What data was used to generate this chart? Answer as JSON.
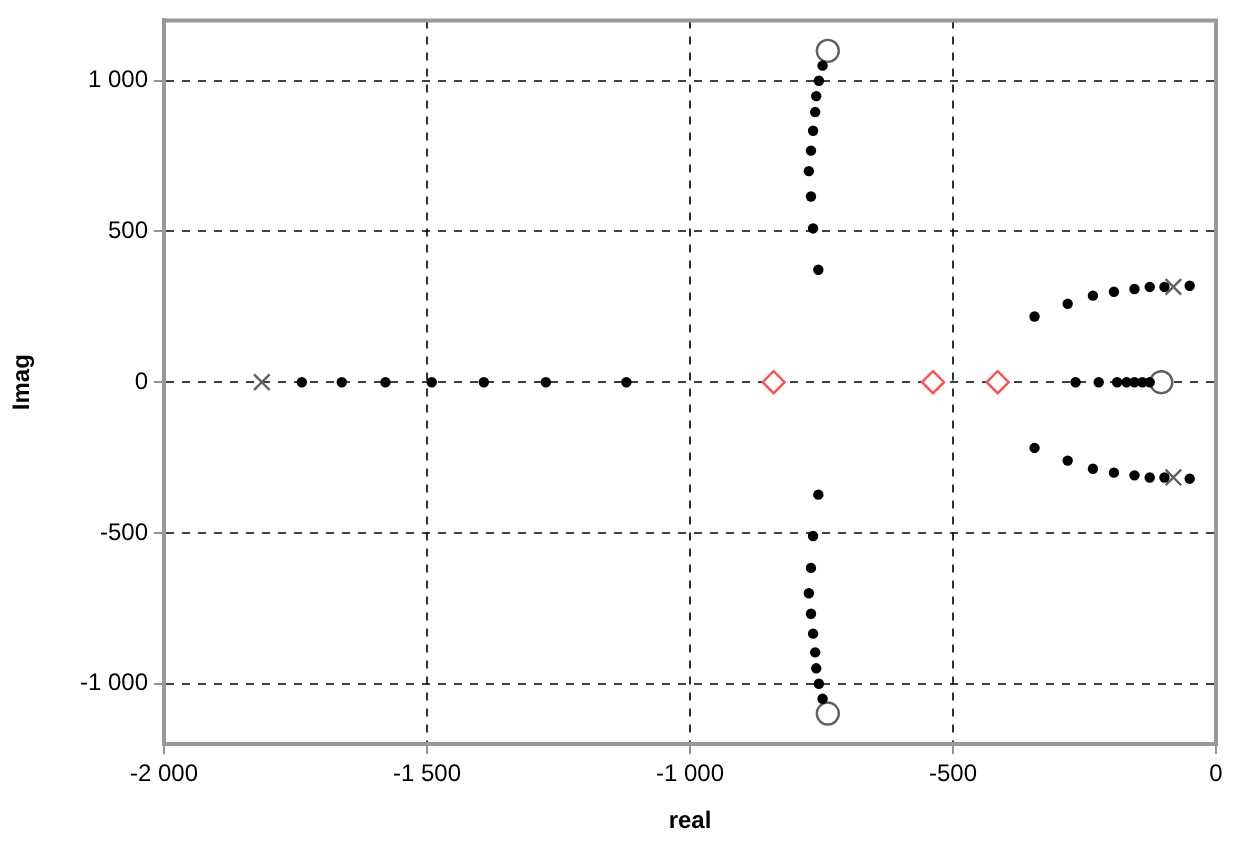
{
  "chart_data": {
    "type": "scatter",
    "xlabel": "real",
    "ylabel": "Imag",
    "xlim": [
      -2000,
      0
    ],
    "ylim": [
      -1200,
      1200
    ],
    "xticks": [
      {
        "value": -2000,
        "label": "-2 000"
      },
      {
        "value": -1500,
        "label": "-1 500"
      },
      {
        "value": -1000,
        "label": "-1 000"
      },
      {
        "value": -500,
        "label": "-500"
      },
      0
    ],
    "yticks": [
      {
        "value": -1000,
        "label": "-1 000"
      },
      -500,
      0,
      500,
      {
        "value": 1000,
        "label": "1 000"
      }
    ],
    "grid": true,
    "line_style": "dashed",
    "legend": false,
    "series": [
      {
        "color": "#000000",
        "marker": "circle",
        "x": [
          -1738,
          -1662,
          -1579,
          -1491,
          -1392,
          -1274,
          -1121,
          -748,
          -755,
          -760,
          -762,
          -766,
          -770,
          -774,
          -770,
          -766,
          -756,
          -748,
          -755,
          -760,
          -762,
          -766,
          -770,
          -774,
          -770,
          -766,
          -756,
          -267,
          -223,
          -188,
          -170,
          -155,
          -140,
          -126,
          -345,
          -282,
          -234,
          -194,
          -155,
          -126,
          -98,
          -50,
          -345,
          -282,
          -234,
          -194,
          -155,
          -126,
          -98,
          -50
        ],
        "values": [
          0,
          0,
          0,
          0,
          0,
          0,
          0,
          1050,
          1000,
          949,
          896,
          834,
          768,
          700,
          616,
          510,
          373,
          -1050,
          -1000,
          -949,
          -896,
          -834,
          -768,
          -700,
          -616,
          -510,
          -373,
          0,
          0,
          0,
          0,
          0,
          0,
          0,
          218,
          260,
          287,
          300,
          309,
          316,
          316,
          320,
          -218,
          -260,
          -287,
          -300,
          -309,
          -316,
          -316,
          -320
        ]
      },
      {
        "color": "#606060",
        "marker": "cross",
        "x": [
          -1814,
          -81,
          -81
        ],
        "values": [
          0,
          316,
          -316
        ]
      },
      {
        "color": "#606060",
        "marker": "circle",
        "x": [
          -738,
          -738,
          -104
        ],
        "values": [
          1099,
          -1099,
          0
        ]
      },
      {
        "color": "#ff5050",
        "marker": "diamond",
        "x": [
          -841,
          -538,
          -415
        ],
        "values": [
          0,
          0,
          0
        ]
      }
    ]
  }
}
